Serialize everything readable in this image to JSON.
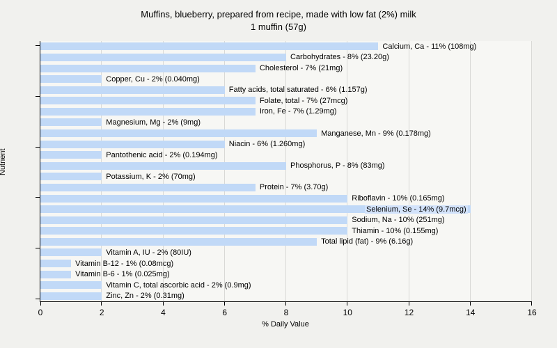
{
  "colors": {
    "page_bg": "#f1f1ee",
    "plot_bg": "#f7f7f4",
    "bar": "#c1d9f7",
    "bar_highlight": "#d3e3fb",
    "grid": "#d9d9d6",
    "axis": "#000000",
    "text": "#000000"
  },
  "chart_data": {
    "type": "bar",
    "orientation": "horizontal",
    "title": "Muffins, blueberry, prepared from recipe, made with low fat (2%) milk",
    "subtitle": "1 muffin (57g)",
    "xlabel": "% Daily Value",
    "ylabel": "Nutrient",
    "xlim": [
      0,
      16
    ],
    "xticks": [
      0,
      2,
      4,
      6,
      8,
      10,
      12,
      14,
      16
    ],
    "grid": "vertical gridlines at labeled x ticks",
    "legend": "none",
    "bars": [
      {
        "label": "Calcium, Ca - 11% (108mg)",
        "value": 11
      },
      {
        "label": "Carbohydrates - 8% (23.20g)",
        "value": 8
      },
      {
        "label": "Cholesterol - 7% (21mg)",
        "value": 7
      },
      {
        "label": "Copper, Cu - 2% (0.040mg)",
        "value": 2
      },
      {
        "label": "Fatty acids, total saturated - 6% (1.157g)",
        "value": 6
      },
      {
        "label": "Folate, total - 7% (27mcg)",
        "value": 7
      },
      {
        "label": "Iron, Fe - 7% (1.29mg)",
        "value": 7
      },
      {
        "label": "Magnesium, Mg - 2% (9mg)",
        "value": 2
      },
      {
        "label": "Manganese, Mn - 9% (0.178mg)",
        "value": 9
      },
      {
        "label": "Niacin - 6% (1.260mg)",
        "value": 6
      },
      {
        "label": "Pantothenic acid - 2% (0.194mg)",
        "value": 2
      },
      {
        "label": "Phosphorus, P - 8% (83mg)",
        "value": 8
      },
      {
        "label": "Potassium, K - 2% (70mg)",
        "value": 2
      },
      {
        "label": "Protein - 7% (3.70g)",
        "value": 7
      },
      {
        "label": "Riboflavin - 10% (0.165mg)",
        "value": 10
      },
      {
        "label": "Selenium, Se - 14% (9.7mcg)",
        "value": 14,
        "label_inside": true
      },
      {
        "label": "Sodium, Na - 10% (251mg)",
        "value": 10
      },
      {
        "label": "Thiamin - 10% (0.155mg)",
        "value": 10
      },
      {
        "label": "Total lipid (fat) - 9% (6.16g)",
        "value": 9
      },
      {
        "label": "Vitamin A, IU - 2% (80IU)",
        "value": 2
      },
      {
        "label": "Vitamin B-12 - 1% (0.08mcg)",
        "value": 1
      },
      {
        "label": "Vitamin B-6 - 1% (0.025mg)",
        "value": 1
      },
      {
        "label": "Vitamin C, total ascorbic acid - 2% (0.9mg)",
        "value": 2
      },
      {
        "label": "Zinc, Zn - 2% (0.31mg)",
        "value": 2
      }
    ]
  }
}
